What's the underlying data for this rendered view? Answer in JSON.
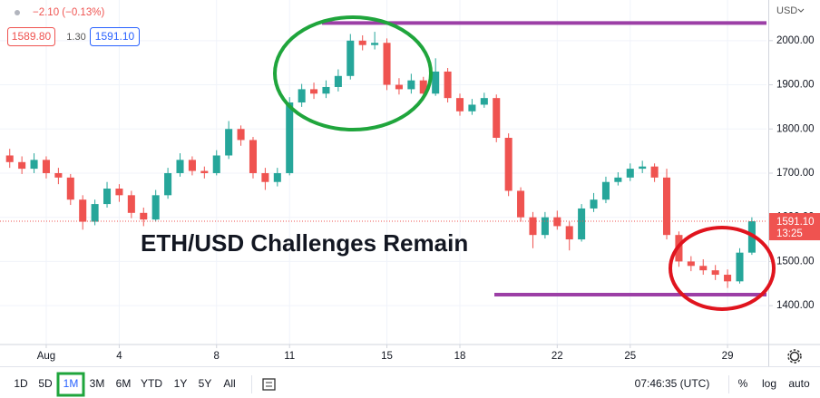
{
  "chart_data": {
    "type": "candlestick",
    "header": {
      "change": "−2.10 (−0.13%)",
      "bid": "1589.80",
      "spread": "1.30",
      "ask": "1591.10"
    },
    "currency": "USD",
    "annotation": "ETH/USD Challenges Remain",
    "last_price": {
      "value": 1591.1,
      "label": "1591.10"
    },
    "countdown": "13:25",
    "levels": [
      2040,
      1425
    ],
    "level_color": "#9c3fa6",
    "up_color": "#26a69a",
    "down_color": "#ef5350",
    "grid": true,
    "xlim": [
      -0.9,
      30.6
    ],
    "ylim": [
      1312,
      2092
    ],
    "xticks": [
      {
        "value": 1,
        "label": "Aug"
      },
      4,
      8,
      11,
      15,
      18,
      22,
      25,
      29
    ],
    "yticks": [
      {
        "value": 1400,
        "label": "1400.00"
      },
      {
        "value": 1500,
        "label": "1500.00"
      },
      {
        "value": 1600,
        "label": "1600.00"
      },
      {
        "value": 1700,
        "label": "1700.00"
      },
      {
        "value": 1800,
        "label": "1800.00"
      },
      {
        "value": 1900,
        "label": "1900.00"
      },
      {
        "value": 2000,
        "label": "2000.00"
      }
    ],
    "x": [
      -0.5,
      0,
      0.5,
      1,
      1.5,
      2,
      2.5,
      3,
      3.5,
      4,
      4.5,
      5,
      5.5,
      6,
      6.5,
      7,
      7.5,
      8,
      8.5,
      9,
      9.5,
      10,
      10.5,
      11,
      11.5,
      12,
      12.5,
      13,
      13.5,
      14,
      14.5,
      15,
      15.5,
      16,
      16.5,
      17,
      17.5,
      18,
      18.5,
      19,
      19.5,
      20,
      20.5,
      21,
      21.5,
      22,
      22.5,
      23,
      23.5,
      24,
      24.5,
      25,
      25.5,
      26,
      26.5,
      27,
      27.5,
      28,
      28.5,
      29,
      29.5,
      30
    ],
    "open": [
      1740,
      1725,
      1710,
      1730,
      1700,
      1690,
      1640,
      1590,
      1630,
      1665,
      1650,
      1610,
      1595,
      1650,
      1700,
      1730,
      1705,
      1700,
      1740,
      1800,
      1775,
      1700,
      1680,
      1700,
      1860,
      1890,
      1880,
      1895,
      1920,
      2000,
      1990,
      1995,
      1900,
      1890,
      1910,
      1880,
      1930,
      1870,
      1840,
      1855,
      1870,
      1780,
      1660,
      1600,
      1560,
      1600,
      1580,
      1550,
      1620,
      1640,
      1680,
      1690,
      1710,
      1715,
      1690,
      1560,
      1500,
      1490,
      1480,
      1470,
      1455,
      1520
    ],
    "high": [
      1755,
      1738,
      1745,
      1738,
      1712,
      1698,
      1650,
      1640,
      1680,
      1675,
      1660,
      1622,
      1662,
      1712,
      1745,
      1738,
      1715,
      1752,
      1818,
      1808,
      1782,
      1712,
      1712,
      1872,
      1902,
      1905,
      1910,
      1935,
      2015,
      2012,
      2020,
      2005,
      1915,
      1925,
      1918,
      1960,
      1938,
      1880,
      1868,
      1882,
      1878,
      1790,
      1668,
      1612,
      1612,
      1615,
      1590,
      1630,
      1655,
      1692,
      1702,
      1722,
      1728,
      1722,
      1710,
      1568,
      1512,
      1505,
      1492,
      1482,
      1530,
      1600
    ],
    "low": [
      1712,
      1698,
      1700,
      1688,
      1675,
      1628,
      1572,
      1582,
      1622,
      1635,
      1598,
      1580,
      1590,
      1642,
      1692,
      1695,
      1688,
      1695,
      1732,
      1762,
      1688,
      1662,
      1670,
      1695,
      1850,
      1868,
      1870,
      1885,
      1912,
      1978,
      1980,
      1888,
      1878,
      1880,
      1872,
      1875,
      1860,
      1830,
      1832,
      1848,
      1770,
      1648,
      1590,
      1530,
      1552,
      1572,
      1525,
      1545,
      1612,
      1632,
      1672,
      1682,
      1700,
      1680,
      1550,
      1488,
      1478,
      1470,
      1458,
      1440,
      1450,
      1515
    ],
    "close": [
      1725,
      1710,
      1730,
      1700,
      1690,
      1640,
      1590,
      1630,
      1665,
      1650,
      1610,
      1595,
      1650,
      1700,
      1730,
      1705,
      1700,
      1740,
      1800,
      1775,
      1700,
      1680,
      1700,
      1860,
      1890,
      1880,
      1895,
      1920,
      2000,
      1990,
      1995,
      1900,
      1890,
      1910,
      1880,
      1930,
      1870,
      1840,
      1855,
      1870,
      1780,
      1660,
      1600,
      1560,
      1600,
      1580,
      1550,
      1620,
      1640,
      1680,
      1690,
      1710,
      1715,
      1690,
      1560,
      1500,
      1490,
      1480,
      1470,
      1455,
      1520,
      1591.1
    ],
    "toolbar": {
      "ranges": [
        "1D",
        "5D",
        "1M",
        "3M",
        "6M",
        "YTD",
        "1Y",
        "5Y",
        "All"
      ],
      "active": "1M",
      "clock": "07:46:35 (UTC)",
      "percent": "%",
      "log": "log",
      "auto": "auto"
    }
  }
}
